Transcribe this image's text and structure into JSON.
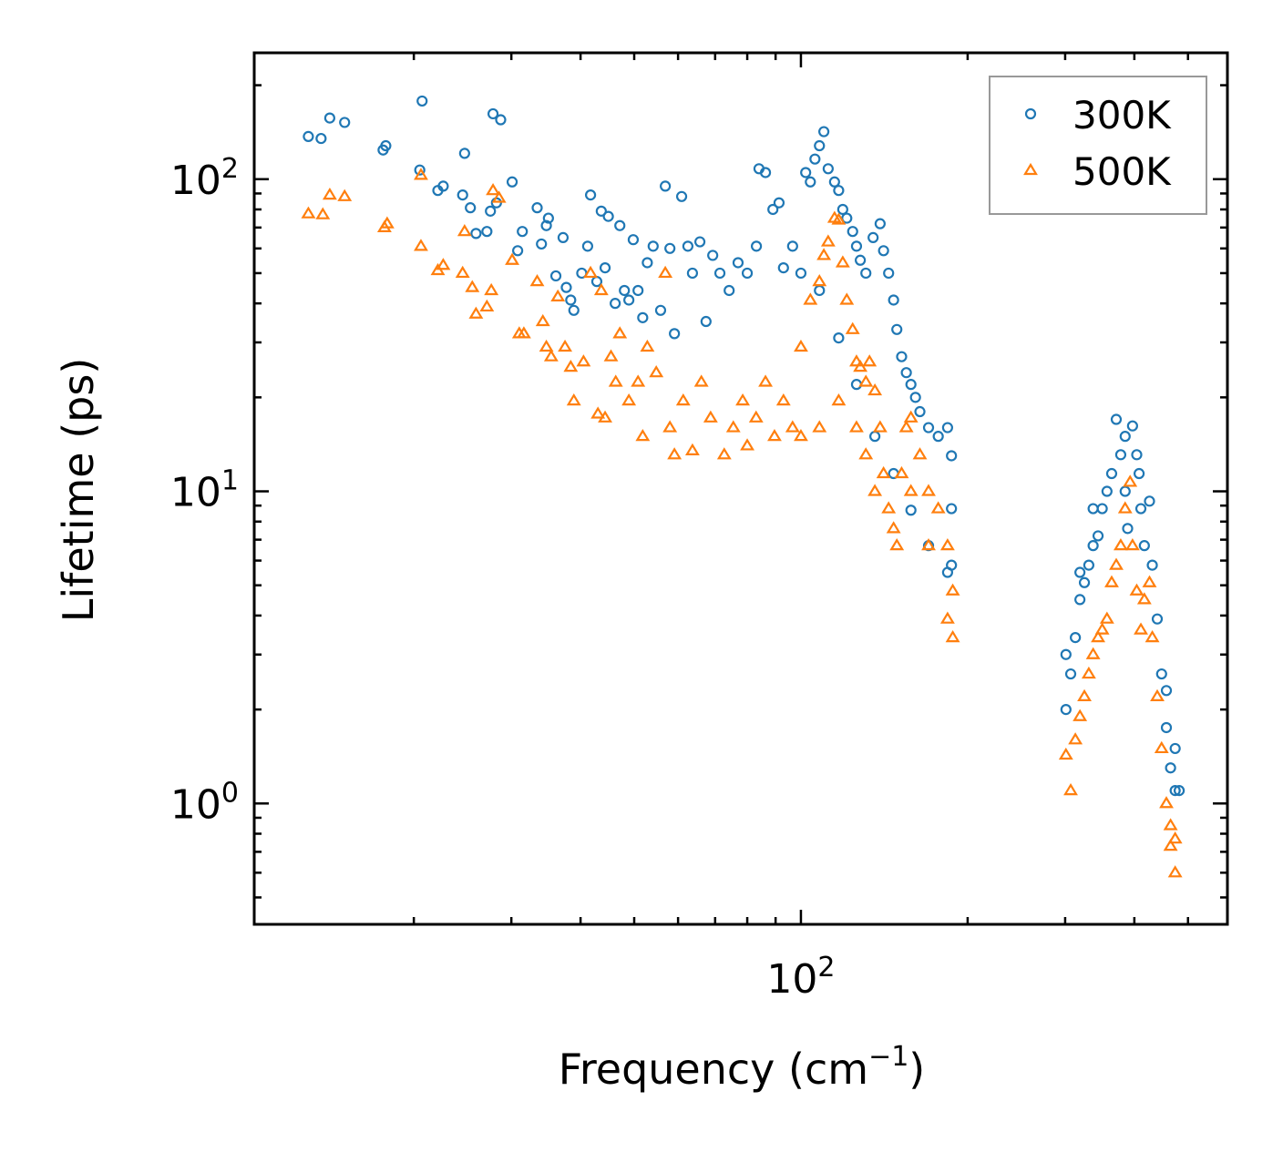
{
  "chart_data": {
    "type": "scatter",
    "title": "",
    "xlabel": "Frequency (cm",
    "xlabel_sup": "−1",
    "xlabel_end": ")",
    "ylabel": "Lifetime (ps)",
    "xscale": "log",
    "yscale": "log",
    "xlim": [
      10.3,
      589
    ],
    "ylim": [
      0.41,
      254
    ],
    "grid": false,
    "legend_position": "top-right",
    "x_ticks": [
      {
        "value": 100,
        "base": "10",
        "exp": "2"
      }
    ],
    "y_ticks": [
      {
        "value": 1,
        "base": "10",
        "exp": "0"
      },
      {
        "value": 10,
        "base": "10",
        "exp": "1"
      },
      {
        "value": 100,
        "base": "10",
        "exp": "2"
      }
    ],
    "series": [
      {
        "name": "300K",
        "color": "#1f77b4",
        "marker": "circle",
        "points": [
          [
            12.9,
            137
          ],
          [
            13.6,
            135
          ],
          [
            14.1,
            157
          ],
          [
            15.0,
            152
          ],
          [
            17.6,
            124
          ],
          [
            17.8,
            128
          ],
          [
            20.5,
            107
          ],
          [
            20.7,
            178
          ],
          [
            22.1,
            92
          ],
          [
            22.6,
            95
          ],
          [
            24.5,
            89
          ],
          [
            24.7,
            121
          ],
          [
            25.3,
            81
          ],
          [
            25.9,
            67
          ],
          [
            27.1,
            68
          ],
          [
            27.5,
            79
          ],
          [
            27.8,
            162
          ],
          [
            28.7,
            155
          ],
          [
            28.2,
            84
          ],
          [
            30.1,
            98
          ],
          [
            30.8,
            59
          ],
          [
            31.4,
            68
          ],
          [
            33.4,
            81
          ],
          [
            34.0,
            62
          ],
          [
            34.7,
            71
          ],
          [
            35.0,
            75
          ],
          [
            36.1,
            49
          ],
          [
            37.2,
            65
          ],
          [
            37.7,
            45
          ],
          [
            38.4,
            41
          ],
          [
            38.9,
            38
          ],
          [
            40.2,
            50
          ],
          [
            41.2,
            61
          ],
          [
            41.7,
            89
          ],
          [
            42.8,
            47
          ],
          [
            43.6,
            79
          ],
          [
            44.3,
            52
          ],
          [
            44.9,
            76
          ],
          [
            46.2,
            40
          ],
          [
            47.1,
            71
          ],
          [
            48.0,
            44
          ],
          [
            48.9,
            41
          ],
          [
            49.8,
            64
          ],
          [
            50.8,
            44
          ],
          [
            51.8,
            36
          ],
          [
            52.8,
            54
          ],
          [
            54.1,
            61
          ],
          [
            55.8,
            38
          ],
          [
            56.9,
            95
          ],
          [
            58.0,
            60
          ],
          [
            59.1,
            32
          ],
          [
            60.9,
            88
          ],
          [
            62.5,
            61
          ],
          [
            63.7,
            50
          ],
          [
            65.7,
            63
          ],
          [
            67.4,
            35
          ],
          [
            69.3,
            57
          ],
          [
            71.4,
            50
          ],
          [
            74.2,
            44
          ],
          [
            77.0,
            54
          ],
          [
            80.0,
            50
          ],
          [
            83.1,
            61
          ],
          [
            84.0,
            108
          ],
          [
            86.3,
            105
          ],
          [
            89.0,
            80
          ],
          [
            91.3,
            84
          ],
          [
            93.0,
            52
          ],
          [
            96.6,
            61
          ],
          [
            102,
            105
          ],
          [
            104,
            98
          ],
          [
            106,
            116
          ],
          [
            108,
            128
          ],
          [
            110,
            142
          ],
          [
            112,
            108
          ],
          [
            115,
            98
          ],
          [
            117,
            92
          ],
          [
            119,
            80
          ],
          [
            121,
            75
          ],
          [
            124,
            68
          ],
          [
            126,
            61
          ],
          [
            128,
            55
          ],
          [
            131,
            50
          ],
          [
            135,
            65
          ],
          [
            139,
            72
          ],
          [
            141,
            59
          ],
          [
            144,
            50
          ],
          [
            147,
            41
          ],
          [
            149,
            33
          ],
          [
            152,
            27
          ],
          [
            155,
            24
          ],
          [
            158,
            22
          ],
          [
            161,
            20
          ],
          [
            164,
            18
          ],
          [
            170,
            16
          ],
          [
            177,
            15
          ],
          [
            184,
            16
          ],
          [
            187,
            13
          ],
          [
            187,
            8.8
          ],
          [
            187,
            5.8
          ],
          [
            100,
            50
          ],
          [
            108,
            44
          ],
          [
            117,
            31
          ],
          [
            126,
            22
          ],
          [
            136,
            15
          ],
          [
            147,
            11.4
          ],
          [
            158,
            8.7
          ],
          [
            170,
            6.7
          ],
          [
            184,
            5.5
          ],
          [
            301,
            2.0
          ],
          [
            307,
            2.6
          ],
          [
            313,
            3.4
          ],
          [
            319,
            4.5
          ],
          [
            325,
            5.1
          ],
          [
            331,
            5.8
          ],
          [
            337,
            6.7
          ],
          [
            344,
            7.2
          ],
          [
            350,
            8.8
          ],
          [
            357,
            10
          ],
          [
            364,
            11.4
          ],
          [
            371,
            17.0
          ],
          [
            378,
            13.1
          ],
          [
            385,
            10
          ],
          [
            389,
            7.6
          ],
          [
            397,
            16.2
          ],
          [
            404,
            13.1
          ],
          [
            411,
            8.8
          ],
          [
            417,
            6.7
          ],
          [
            426,
            9.3
          ],
          [
            431,
            5.8
          ],
          [
            440,
            3.9
          ],
          [
            448,
            2.6
          ],
          [
            457,
            1.75
          ],
          [
            465,
            1.3
          ],
          [
            474,
            1.1
          ],
          [
            482,
            1.1
          ],
          [
            301,
            3.0
          ],
          [
            319,
            5.5
          ],
          [
            337,
            8.8
          ],
          [
            385,
            15
          ],
          [
            408,
            11.4
          ],
          [
            457,
            2.3
          ],
          [
            474,
            1.5
          ]
        ]
      },
      {
        "name": "500K",
        "color": "#ff7f0e",
        "marker": "triangle",
        "points": [
          [
            12.9,
            77.5
          ],
          [
            13.7,
            77
          ],
          [
            14.1,
            89
          ],
          [
            15.0,
            88
          ],
          [
            17.7,
            70
          ],
          [
            17.9,
            72
          ],
          [
            20.6,
            103
          ],
          [
            20.6,
            61
          ],
          [
            22.1,
            51
          ],
          [
            22.6,
            53
          ],
          [
            24.5,
            50
          ],
          [
            24.7,
            68
          ],
          [
            25.5,
            45
          ],
          [
            25.9,
            37
          ],
          [
            27.1,
            39
          ],
          [
            27.6,
            44
          ],
          [
            27.8,
            92
          ],
          [
            28.5,
            87
          ],
          [
            30.1,
            55
          ],
          [
            31.0,
            32
          ],
          [
            31.6,
            32
          ],
          [
            33.4,
            47
          ],
          [
            34.2,
            35
          ],
          [
            34.7,
            29
          ],
          [
            35.4,
            27
          ],
          [
            36.4,
            42
          ],
          [
            37.5,
            29
          ],
          [
            38.4,
            25
          ],
          [
            38.9,
            19.5
          ],
          [
            40.5,
            26
          ],
          [
            41.7,
            50
          ],
          [
            43.0,
            17.7
          ],
          [
            43.6,
            44
          ],
          [
            44.3,
            17.2
          ],
          [
            45.4,
            27
          ],
          [
            46.3,
            22.4
          ],
          [
            47.1,
            32
          ],
          [
            48.9,
            19.5
          ],
          [
            50.8,
            22.4
          ],
          [
            51.8,
            15
          ],
          [
            52.8,
            29
          ],
          [
            54.8,
            24
          ],
          [
            56.9,
            50
          ],
          [
            58,
            16
          ],
          [
            59.1,
            13.1
          ],
          [
            61.3,
            19.5
          ],
          [
            63.7,
            13.5
          ],
          [
            66.1,
            22.4
          ],
          [
            68.7,
            17.2
          ],
          [
            72.7,
            13.1
          ],
          [
            75.5,
            16
          ],
          [
            78.5,
            19.5
          ],
          [
            80,
            14
          ],
          [
            83,
            17.2
          ],
          [
            86.3,
            22.4
          ],
          [
            89.6,
            15
          ],
          [
            93,
            19.5
          ],
          [
            96.6,
            16
          ],
          [
            100,
            29
          ],
          [
            104,
            41
          ],
          [
            108,
            47
          ],
          [
            110,
            57
          ],
          [
            112,
            63
          ],
          [
            115,
            75
          ],
          [
            117,
            74
          ],
          [
            119,
            54
          ],
          [
            121,
            41
          ],
          [
            124,
            33
          ],
          [
            126,
            26
          ],
          [
            128,
            25
          ],
          [
            131,
            22.4
          ],
          [
            133,
            26
          ],
          [
            136,
            21
          ],
          [
            139,
            16
          ],
          [
            141,
            11.4
          ],
          [
            144,
            8.8
          ],
          [
            147,
            7.6
          ],
          [
            149,
            6.7
          ],
          [
            152,
            11.4
          ],
          [
            155,
            16
          ],
          [
            158,
            17.2
          ],
          [
            164,
            13.1
          ],
          [
            170,
            10
          ],
          [
            177,
            8.8
          ],
          [
            184,
            6.7
          ],
          [
            188,
            4.8
          ],
          [
            188,
            3.4
          ],
          [
            184,
            3.9
          ],
          [
            117,
            19.5
          ],
          [
            108,
            16
          ],
          [
            100,
            15
          ],
          [
            126,
            16
          ],
          [
            131,
            13.1
          ],
          [
            136,
            10
          ],
          [
            158,
            10
          ],
          [
            170,
            6.7
          ],
          [
            301,
            1.43
          ],
          [
            307,
            1.1
          ],
          [
            313,
            1.6
          ],
          [
            319,
            1.9
          ],
          [
            325,
            2.2
          ],
          [
            331,
            2.6
          ],
          [
            337,
            3.0
          ],
          [
            344,
            3.4
          ],
          [
            350,
            3.6
          ],
          [
            357,
            3.9
          ],
          [
            364,
            5.1
          ],
          [
            371,
            5.8
          ],
          [
            378,
            6.7
          ],
          [
            385,
            8.8
          ],
          [
            393,
            10.7
          ],
          [
            397,
            6.7
          ],
          [
            404,
            4.8
          ],
          [
            411,
            3.6
          ],
          [
            417,
            4.5
          ],
          [
            426,
            5.1
          ],
          [
            431,
            3.4
          ],
          [
            440,
            2.2
          ],
          [
            448,
            1.5
          ],
          [
            457,
            1.0
          ],
          [
            465,
            0.73
          ],
          [
            474,
            0.6
          ],
          [
            474,
            0.77
          ],
          [
            465,
            0.85
          ]
        ]
      }
    ]
  }
}
